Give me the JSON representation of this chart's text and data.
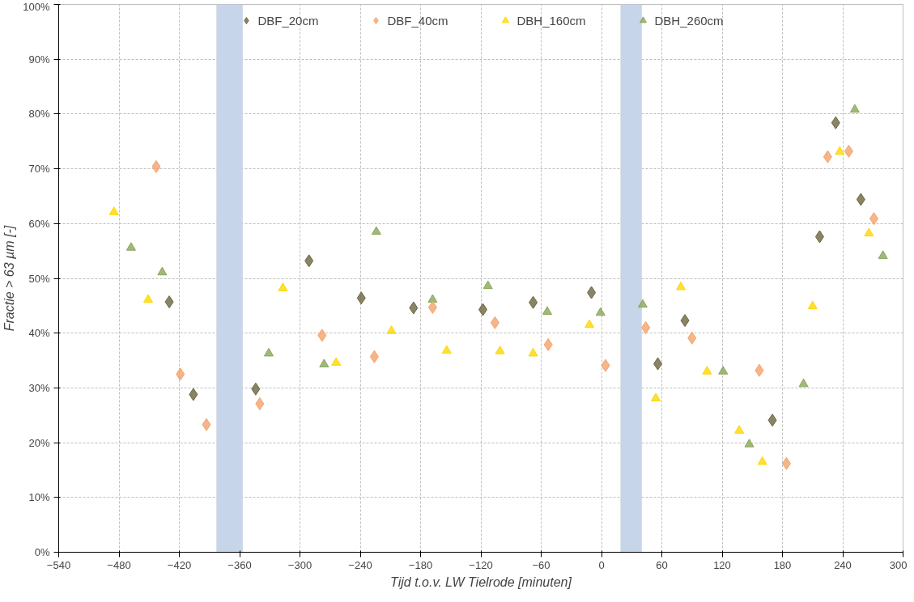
{
  "chart_data": {
    "type": "scatter",
    "xlabel": "Tijd t.o.v. LW Tielrode [minuten]",
    "ylabel": "Fractie > 63 µm [-]",
    "xlim": [
      -540,
      300
    ],
    "xticks": [
      -540,
      -480,
      -420,
      -360,
      -300,
      -240,
      -180,
      -120,
      -60,
      0,
      60,
      120,
      180,
      240,
      300
    ],
    "ylim": [
      0,
      100
    ],
    "yticks": [
      {
        "value": 0,
        "label": "0%"
      },
      {
        "value": 10,
        "label": "10%"
      },
      {
        "value": 20,
        "label": "20%"
      },
      {
        "value": 30,
        "label": "30%"
      },
      {
        "value": 40,
        "label": "40%"
      },
      {
        "value": 50,
        "label": "50%"
      },
      {
        "value": 60,
        "label": "60%"
      },
      {
        "value": 70,
        "label": "70%"
      },
      {
        "value": 80,
        "label": "80%"
      },
      {
        "value": 90,
        "label": "90%"
      },
      {
        "value": 100,
        "label": "100%"
      }
    ],
    "grid": true,
    "legend": "top",
    "bands": [
      {
        "axis": "x",
        "from": -383,
        "to": -357,
        "color": "#c6d5ea"
      },
      {
        "axis": "x",
        "from": 19,
        "to": 40,
        "color": "#c6d5ea"
      }
    ],
    "series": [
      {
        "name": "DBF_20cm",
        "color": "#6b6540",
        "marker": "diamond",
        "x": [
          -430,
          -406,
          -344,
          -291,
          -239,
          -187,
          -118,
          -68,
          -10,
          56,
          83,
          170,
          217,
          233,
          258
        ],
        "values": [
          45.7,
          28.8,
          29.8,
          53.2,
          46.4,
          44.6,
          44.3,
          45.6,
          47.4,
          34.4,
          42.3,
          24.1,
          57.6,
          78.4,
          64.4
        ]
      },
      {
        "name": "DBF_40cm",
        "color": "#f4a36b",
        "marker": "diamond",
        "x": [
          -443,
          -419,
          -393,
          -340,
          -278,
          -226,
          -168,
          -106,
          -53,
          4,
          44,
          90,
          157,
          184,
          225,
          246,
          271
        ],
        "values": [
          70.4,
          32.5,
          23.3,
          27.1,
          39.6,
          35.7,
          44.7,
          41.9,
          37.9,
          34.1,
          41.0,
          39.1,
          33.2,
          16.2,
          72.2,
          73.2,
          60.9
        ]
      },
      {
        "name": "DBH_160cm",
        "color": "#ffd700",
        "marker": "triangle",
        "x": [
          -485,
          -451,
          -317,
          -264,
          -209,
          -154,
          -101,
          -68,
          -12,
          54,
          79,
          105,
          137,
          160,
          210,
          237,
          266
        ],
        "values": [
          62.1,
          46.1,
          48.2,
          34.6,
          40.4,
          36.8,
          36.7,
          36.3,
          41.5,
          28.1,
          48.4,
          33.0,
          22.2,
          16.5,
          44.9,
          73.1,
          58.2
        ]
      },
      {
        "name": "DBH_260cm",
        "color": "#8aa65a",
        "marker": "triangle",
        "x": [
          -468,
          -437,
          -331,
          -276,
          -224,
          -168,
          -113,
          -54,
          -1,
          41,
          121,
          147,
          201,
          252,
          280
        ],
        "values": [
          55.6,
          51.1,
          36.3,
          34.3,
          58.5,
          46.1,
          48.6,
          43.9,
          43.7,
          45.2,
          33.0,
          19.7,
          30.7,
          80.8,
          54.1
        ]
      }
    ]
  }
}
